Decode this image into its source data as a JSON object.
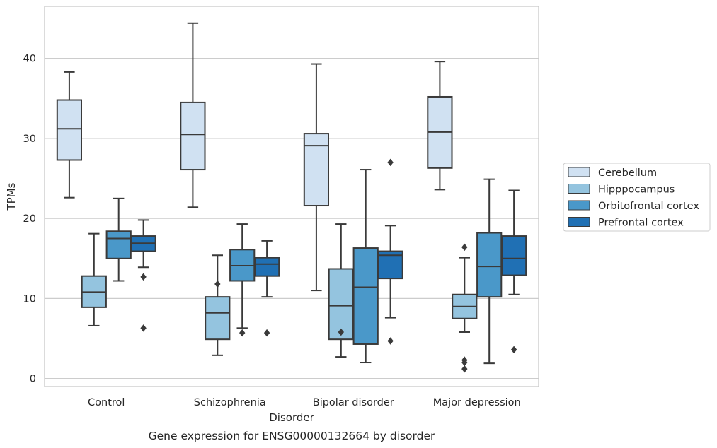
{
  "chart_data": {
    "type": "boxplot",
    "title": "",
    "caption": "Gene expression for ENSG00000132664 by disorder",
    "xlabel": "Disorder",
    "ylabel": "TPMs",
    "ylim": [
      -1,
      46.5
    ],
    "yticks": [
      0,
      10,
      20,
      30,
      40
    ],
    "grid": "horizontal",
    "legend_position": "right",
    "categories": [
      "Control",
      "Schizophrenia",
      "Bipolar disorder",
      "Major depression"
    ],
    "series": [
      {
        "name": "Cerebellum",
        "color": "#d0e1f2",
        "boxes": [
          {
            "whislo": 22.6,
            "q1": 27.3,
            "med": 31.2,
            "q3": 34.8,
            "whishi": 38.3,
            "fliers": []
          },
          {
            "whislo": 21.4,
            "q1": 26.1,
            "med": 30.5,
            "q3": 34.5,
            "whishi": 44.4,
            "fliers": []
          },
          {
            "whislo": 11.0,
            "q1": 21.6,
            "med": 29.1,
            "q3": 30.6,
            "whishi": 39.3,
            "fliers": []
          },
          {
            "whislo": 23.6,
            "q1": 26.3,
            "med": 30.8,
            "q3": 35.2,
            "whishi": 39.6,
            "fliers": []
          }
        ]
      },
      {
        "name": "Hipppocampus",
        "color": "#94c4df",
        "boxes": [
          {
            "whislo": 6.6,
            "q1": 8.9,
            "med": 10.8,
            "q3": 12.8,
            "whishi": 18.1,
            "fliers": []
          },
          {
            "whislo": 2.9,
            "q1": 4.9,
            "med": 8.2,
            "q3": 10.2,
            "whishi": 15.4,
            "fliers": [
              11.8
            ]
          },
          {
            "whislo": 2.7,
            "q1": 4.9,
            "med": 9.1,
            "q3": 13.7,
            "whishi": 19.3,
            "fliers": [
              5.8
            ]
          },
          {
            "whislo": 5.8,
            "q1": 7.5,
            "med": 9.0,
            "q3": 10.5,
            "whishi": 15.1,
            "fliers": [
              16.4,
              2.3,
              2.0,
              1.2
            ]
          }
        ]
      },
      {
        "name": "Orbitofrontal cortex",
        "color": "#4a98c9",
        "boxes": [
          {
            "whislo": 12.2,
            "q1": 15.0,
            "med": 17.5,
            "q3": 18.4,
            "whishi": 22.5,
            "fliers": []
          },
          {
            "whislo": 6.3,
            "q1": 12.2,
            "med": 14.1,
            "q3": 16.1,
            "whishi": 19.3,
            "fliers": [
              5.7
            ]
          },
          {
            "whislo": 2.0,
            "q1": 4.3,
            "med": 11.4,
            "q3": 16.3,
            "whishi": 26.1,
            "fliers": []
          },
          {
            "whislo": 1.9,
            "q1": 10.2,
            "med": 14.0,
            "q3": 18.2,
            "whishi": 24.9,
            "fliers": []
          }
        ]
      },
      {
        "name": "Prefrontal cortex",
        "color": "#2070b4",
        "boxes": [
          {
            "whislo": 13.9,
            "q1": 15.9,
            "med": 16.9,
            "q3": 17.8,
            "whishi": 19.8,
            "fliers": [
              12.7,
              6.3
            ]
          },
          {
            "whislo": 10.2,
            "q1": 12.8,
            "med": 14.3,
            "q3": 15.1,
            "whishi": 17.2,
            "fliers": [
              5.7
            ]
          },
          {
            "whislo": 7.6,
            "q1": 12.5,
            "med": 15.4,
            "q3": 15.9,
            "whishi": 19.1,
            "fliers": [
              27.0,
              4.7
            ]
          },
          {
            "whislo": 10.5,
            "q1": 12.9,
            "med": 15.0,
            "q3": 17.8,
            "whishi": 23.5,
            "fliers": [
              3.6
            ]
          }
        ]
      }
    ]
  }
}
